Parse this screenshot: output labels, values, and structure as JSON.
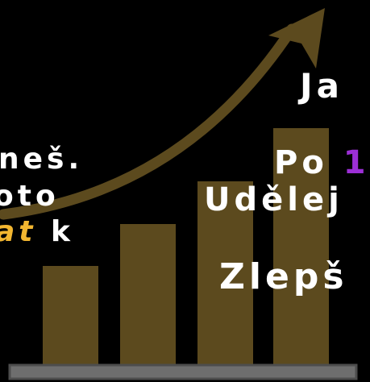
{
  "colors": {
    "background": "#000000",
    "bar": "#5c4a1e",
    "arrow": "#5c4a1e",
    "base": "#6e6e6e",
    "base_outline": "#4d4d4d",
    "text": "#ffffff",
    "highlight_yellow": "#f2b630",
    "accent_purple": "#9c2fd6"
  },
  "graphic": {
    "icon": "growth-bar-chart-with-arrow-icon",
    "bar_count": 4,
    "bar_levels": [
      0.26,
      0.37,
      0.48,
      0.62
    ]
  },
  "text": {
    "left_line1": "neš.",
    "left_line2": "oto",
    "left_line3_highlight": "at",
    "left_line3_rest": " k",
    "right_line1": "Ja",
    "right_line2": "Po",
    "right_line2_accent": "1",
    "right_line3": "Udělej",
    "right_line4": "Zlepš"
  }
}
